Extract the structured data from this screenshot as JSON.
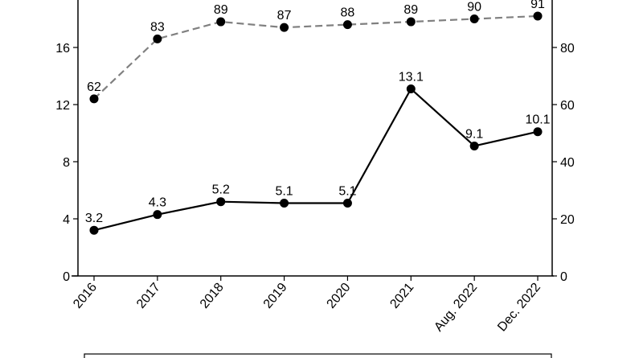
{
  "chart_data": {
    "type": "line",
    "categories": [
      "2016",
      "2017",
      "2018",
      "2019",
      "2020",
      "2021",
      "Aug. 2022",
      "Dec. 2022"
    ],
    "series": [
      {
        "axis": "left",
        "style": "solid",
        "color": "#000000",
        "values": [
          3.2,
          4.3,
          5.2,
          5.1,
          5.1,
          13.1,
          9.1,
          10.1
        ],
        "labels": [
          "3.2",
          "4.3",
          "5.2",
          "5.1",
          "5.1",
          "13.1",
          "9.1",
          "10.1"
        ]
      },
      {
        "axis": "right",
        "style": "dashed",
        "color": "#808080",
        "values": [
          62,
          83,
          89,
          87,
          88,
          89,
          90,
          91
        ],
        "labels": [
          "62",
          "83",
          "89",
          "87",
          "88",
          "89",
          "90",
          "91"
        ]
      }
    ],
    "y_left": {
      "ticks": [
        0,
        4,
        8,
        12,
        16
      ],
      "tick_labels": [
        "0",
        "4",
        "8",
        "12",
        "16"
      ],
      "range": [
        0,
        20
      ]
    },
    "y_right": {
      "ticks": [
        0,
        20,
        40,
        60,
        80
      ],
      "tick_labels": [
        "0",
        "20",
        "40",
        "60",
        "80"
      ],
      "range": [
        0,
        100
      ]
    },
    "grid": false,
    "legend": "bottom"
  }
}
